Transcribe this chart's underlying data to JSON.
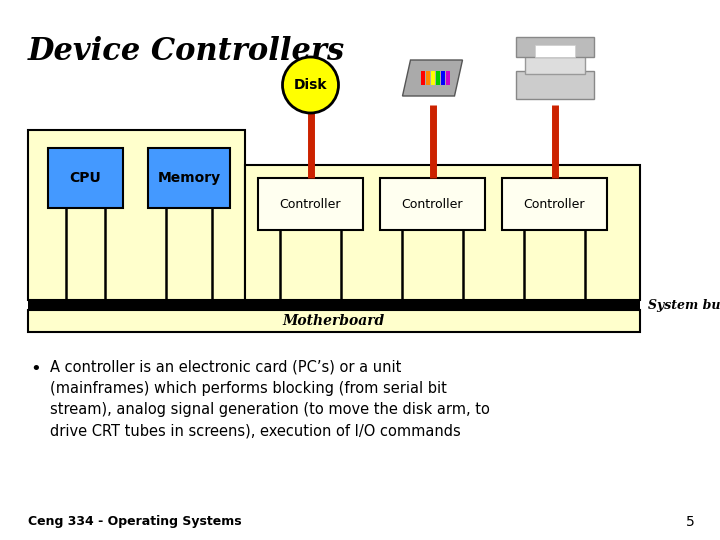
{
  "title": "Device Controllers",
  "background_color": "#ffffff",
  "title_fontsize": 22,
  "motherboard_color": "#ffffcc",
  "cpu_color": "#4499ff",
  "memory_color": "#4499ff",
  "controller_color": "#fffff0",
  "disk_ellipse_color": "#ffff00",
  "connector_color": "#cc2200",
  "system_bus_label": "System bus",
  "motherboard_label": "Motherboard",
  "bullet_lines": [
    "A controller is an electronic card (PC’s) or a unit",
    "(mainframes) which performs blocking (from serial bit",
    "stream), analog signal generation (to move the disk arm, to",
    "drive CRT tubes in screens), execution of I/O commands"
  ],
  "footer_text": "Ceng 334 - Operating Systems",
  "page_number": "5"
}
